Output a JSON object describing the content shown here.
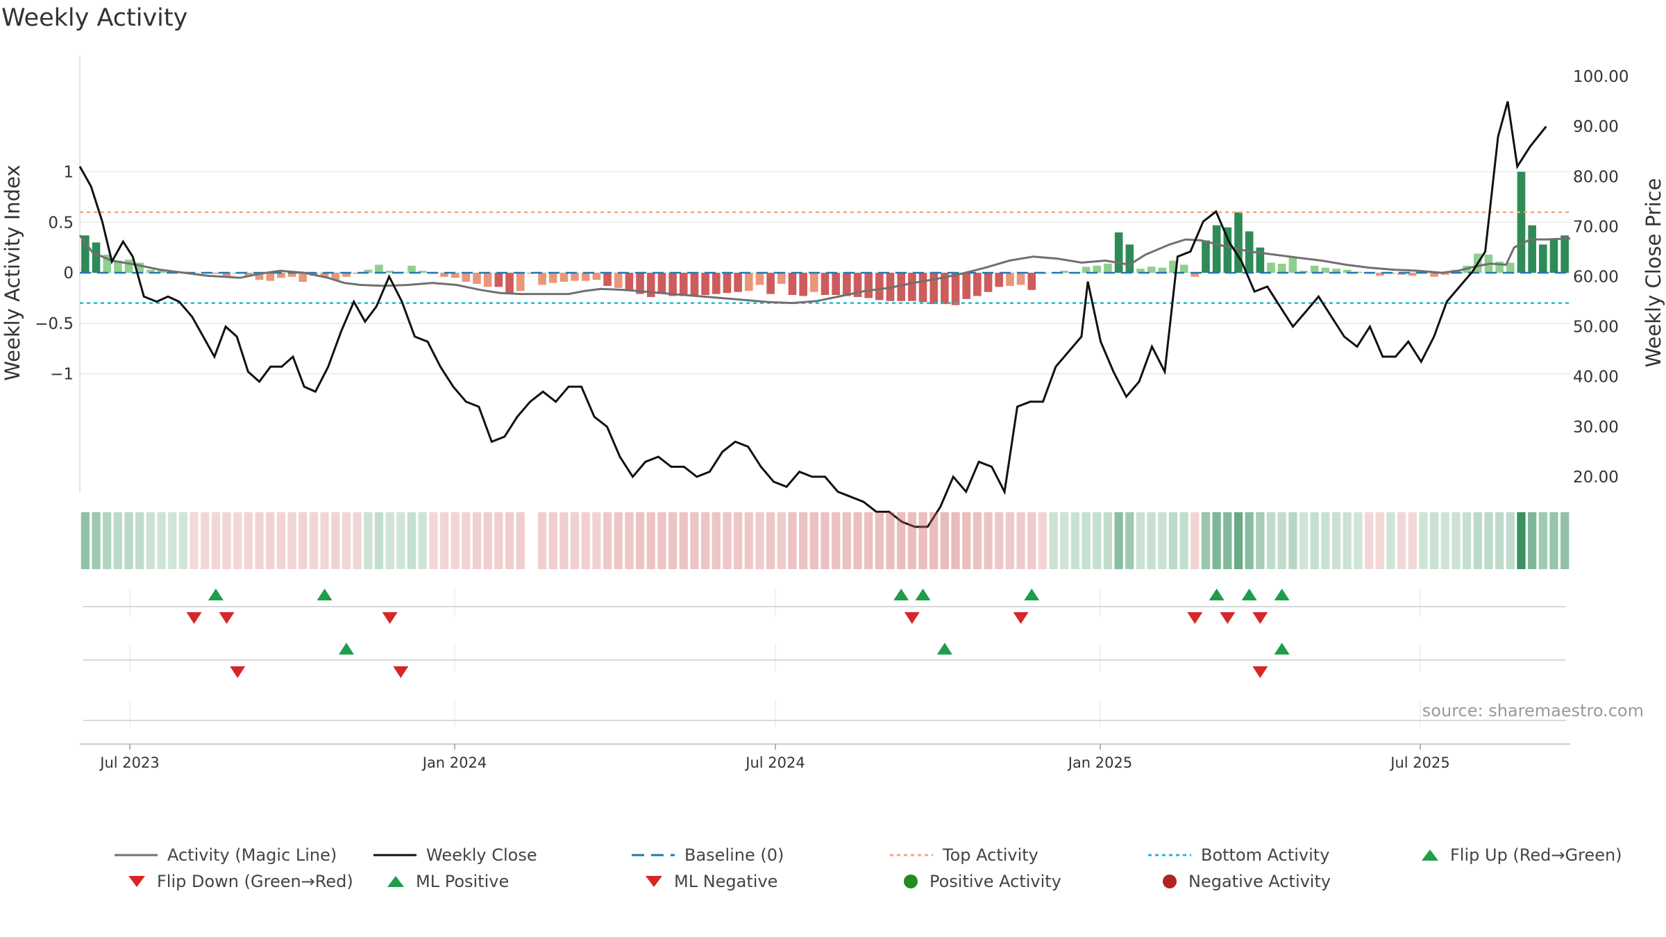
{
  "title": "Weekly Activity",
  "source": "source: sharemaestro.com",
  "colors": {
    "pos_strong": "#2e8b57",
    "pos_weak": "#8fcf8f",
    "neg_strong": "#cd5c5c",
    "neg_weak": "#e9967a",
    "magic": "#707070",
    "close": "#111111",
    "baseline": "#1f77b4",
    "top": "#f4a582",
    "bottom": "#17becf",
    "flip_up": "#1e9e48",
    "flip_down": "#d62728"
  },
  "chart_data": {
    "type": "bar",
    "title": "Weekly Activity",
    "ylabel_left": "Weekly Activity Index",
    "ylabel_right": "Weekly Close Price",
    "ylim_left": [
      -1.1,
      1.03
    ],
    "ylim_right": [
      17.17,
      103.32
    ],
    "left_ticks": [
      "1",
      "0.5",
      "0",
      "−0.5",
      "−1"
    ],
    "right_ticks": [
      "100.00",
      "90.00",
      "80.00",
      "70.00",
      "60.00",
      "50.00",
      "40.00",
      "30.00",
      "20.00"
    ],
    "date_ticks": [
      "Jul 2023",
      "Jan 2024",
      "Jul 2024",
      "Jan 2025",
      "Jul 2025"
    ],
    "baseline": 0,
    "top_activity": 0.6,
    "bottom_activity": -0.3,
    "activity": [
      0.37,
      0.3,
      0.18,
      0.12,
      0.13,
      0.1,
      0.03,
      0.02,
      0.01,
      0.01,
      0.0,
      0.0,
      -0.01,
      -0.05,
      -0.01,
      -0.03,
      -0.07,
      -0.08,
      -0.05,
      -0.04,
      -0.09,
      -0.03,
      -0.04,
      -0.07,
      -0.04,
      -0.01,
      0.03,
      0.08,
      0.02,
      0.01,
      0.07,
      0.02,
      -0.01,
      -0.04,
      -0.05,
      -0.09,
      -0.11,
      -0.14,
      -0.14,
      -0.2,
      -0.18,
      -0.01,
      -0.12,
      -0.1,
      -0.09,
      -0.08,
      -0.08,
      -0.07,
      -0.13,
      -0.15,
      -0.18,
      -0.21,
      -0.24,
      -0.21,
      -0.23,
      -0.23,
      -0.23,
      -0.22,
      -0.21,
      -0.2,
      -0.19,
      -0.18,
      -0.12,
      -0.21,
      -0.11,
      -0.22,
      -0.23,
      -0.19,
      -0.22,
      -0.22,
      -0.23,
      -0.24,
      -0.25,
      -0.27,
      -0.28,
      -0.28,
      -0.28,
      -0.29,
      -0.31,
      -0.31,
      -0.32,
      -0.26,
      -0.23,
      -0.19,
      -0.14,
      -0.13,
      -0.12,
      -0.17,
      -0.01,
      0.0,
      0.02,
      -0.01,
      0.06,
      0.07,
      0.09,
      0.4,
      0.28,
      0.04,
      0.06,
      0.05,
      0.12,
      0.08,
      -0.04,
      0.32,
      0.47,
      0.45,
      0.6,
      0.41,
      0.25,
      0.1,
      0.09,
      0.15,
      0.02,
      0.07,
      0.05,
      0.04,
      0.03,
      0.01,
      -0.01,
      -0.03,
      -0.01,
      -0.02,
      -0.03,
      0.0,
      -0.04,
      -0.02,
      0.03,
      0.07,
      0.19,
      0.18,
      0.11,
      0.1,
      1.0,
      0.47,
      0.28,
      0.33,
      0.37
    ],
    "magic_line": [
      [
        0,
        0.37
      ],
      [
        8,
        0.2
      ],
      [
        20,
        0.12
      ],
      [
        35,
        0.08
      ],
      [
        50,
        0.03
      ],
      [
        65,
        0.0
      ],
      [
        80,
        -0.03
      ],
      [
        90,
        -0.04
      ],
      [
        100,
        -0.05
      ],
      [
        112,
        -0.01
      ],
      [
        125,
        0.02
      ],
      [
        140,
        0.0
      ],
      [
        155,
        -0.05
      ],
      [
        165,
        -0.1
      ],
      [
        175,
        -0.12
      ],
      [
        190,
        -0.13
      ],
      [
        205,
        -0.12
      ],
      [
        220,
        -0.1
      ],
      [
        235,
        -0.12
      ],
      [
        250,
        -0.17
      ],
      [
        262,
        -0.2
      ],
      [
        275,
        -0.21
      ],
      [
        290,
        -0.21
      ],
      [
        305,
        -0.21
      ],
      [
        315,
        -0.18
      ],
      [
        325,
        -0.16
      ],
      [
        340,
        -0.17
      ],
      [
        355,
        -0.19
      ],
      [
        370,
        -0.21
      ],
      [
        385,
        -0.23
      ],
      [
        400,
        -0.25
      ],
      [
        415,
        -0.27
      ],
      [
        430,
        -0.29
      ],
      [
        445,
        -0.3
      ],
      [
        460,
        -0.28
      ],
      [
        475,
        -0.23
      ],
      [
        490,
        -0.18
      ],
      [
        505,
        -0.15
      ],
      [
        520,
        -0.1
      ],
      [
        535,
        -0.06
      ],
      [
        550,
        -0.01
      ],
      [
        565,
        0.05
      ],
      [
        580,
        0.12
      ],
      [
        595,
        0.16
      ],
      [
        610,
        0.14
      ],
      [
        625,
        0.1
      ],
      [
        640,
        0.12
      ],
      [
        655,
        0.08
      ],
      [
        665,
        0.18
      ],
      [
        680,
        0.28
      ],
      [
        690,
        0.33
      ],
      [
        700,
        0.32
      ],
      [
        715,
        0.26
      ],
      [
        730,
        0.21
      ],
      [
        745,
        0.18
      ],
      [
        760,
        0.15
      ],
      [
        775,
        0.12
      ],
      [
        790,
        0.08
      ],
      [
        805,
        0.05
      ],
      [
        820,
        0.03
      ],
      [
        835,
        0.02
      ],
      [
        850,
        0.0
      ],
      [
        860,
        0.02
      ],
      [
        870,
        0.06
      ],
      [
        880,
        0.09
      ],
      [
        890,
        0.08
      ],
      [
        895,
        0.25
      ],
      [
        905,
        0.33
      ],
      [
        915,
        0.33
      ],
      [
        930,
        0.34
      ]
    ],
    "weekly_close": [
      [
        0,
        82
      ],
      [
        7,
        78
      ],
      [
        14,
        71
      ],
      [
        20,
        63
      ],
      [
        27,
        67
      ],
      [
        33,
        64
      ],
      [
        40,
        56
      ],
      [
        48,
        55
      ],
      [
        55,
        56
      ],
      [
        62,
        55
      ],
      [
        70,
        52
      ],
      [
        77,
        48
      ],
      [
        84,
        44
      ],
      [
        91,
        50
      ],
      [
        98,
        48
      ],
      [
        105,
        41
      ],
      [
        112,
        39
      ],
      [
        119,
        42
      ],
      [
        126,
        42
      ],
      [
        133,
        44
      ],
      [
        140,
        38
      ],
      [
        147,
        37
      ],
      [
        155,
        42
      ],
      [
        163,
        49
      ],
      [
        171,
        55
      ],
      [
        178,
        51
      ],
      [
        185,
        54
      ],
      [
        193,
        60
      ],
      [
        201,
        55
      ],
      [
        209,
        48
      ],
      [
        217,
        47
      ],
      [
        225,
        42
      ],
      [
        233,
        38
      ],
      [
        241,
        35
      ],
      [
        249,
        34
      ],
      [
        257,
        27
      ],
      [
        265,
        28
      ],
      [
        273,
        32
      ],
      [
        281,
        35
      ],
      [
        289,
        37
      ],
      [
        297,
        35
      ],
      [
        305,
        38
      ],
      [
        313,
        38
      ],
      [
        321,
        32
      ],
      [
        329,
        30
      ],
      [
        337,
        24
      ],
      [
        345,
        20
      ],
      [
        353,
        23
      ],
      [
        361,
        24
      ],
      [
        369,
        22
      ],
      [
        377,
        22
      ],
      [
        385,
        20
      ],
      [
        393,
        21
      ],
      [
        401,
        25
      ],
      [
        409,
        27
      ],
      [
        417,
        26
      ],
      [
        425,
        22
      ],
      [
        433,
        19
      ],
      [
        441,
        18
      ],
      [
        449,
        21
      ],
      [
        457,
        20
      ],
      [
        465,
        20
      ],
      [
        473,
        17
      ],
      [
        481,
        16
      ],
      [
        489,
        15
      ],
      [
        497,
        13
      ],
      [
        505,
        13
      ],
      [
        513,
        11
      ],
      [
        521,
        10
      ],
      [
        529,
        10
      ],
      [
        537,
        14
      ],
      [
        545,
        20
      ],
      [
        553,
        17
      ],
      [
        561,
        23
      ],
      [
        569,
        22
      ],
      [
        577,
        17
      ],
      [
        585,
        34
      ],
      [
        593,
        35
      ],
      [
        601,
        35
      ],
      [
        609,
        42
      ],
      [
        617,
        45
      ],
      [
        625,
        48
      ],
      [
        629,
        59
      ],
      [
        637,
        47
      ],
      [
        645,
        41
      ],
      [
        653,
        36
      ],
      [
        661,
        39
      ],
      [
        669,
        46
      ],
      [
        677,
        41
      ],
      [
        685,
        64
      ],
      [
        693,
        65
      ],
      [
        701,
        71
      ],
      [
        709,
        73
      ],
      [
        717,
        67
      ],
      [
        725,
        63
      ],
      [
        733,
        57
      ],
      [
        741,
        58
      ],
      [
        749,
        54
      ],
      [
        757,
        50
      ],
      [
        765,
        53
      ],
      [
        773,
        56
      ],
      [
        781,
        52
      ],
      [
        789,
        48
      ],
      [
        797,
        46
      ],
      [
        805,
        50
      ],
      [
        813,
        44
      ],
      [
        821,
        44
      ],
      [
        829,
        47
      ],
      [
        837,
        43
      ],
      [
        845,
        48
      ],
      [
        853,
        55
      ],
      [
        861,
        58
      ],
      [
        869,
        61
      ],
      [
        877,
        65
      ],
      [
        885,
        88
      ],
      [
        891,
        95
      ],
      [
        897,
        82
      ],
      [
        905,
        86
      ],
      [
        915,
        90
      ]
    ]
  },
  "heat_strip": [
    0.37,
    0.3,
    0.18,
    0.12,
    0.13,
    0.1,
    0.03,
    0.02,
    0.01,
    0.01,
    -0.02,
    -0.03,
    -0.03,
    -0.04,
    -0.03,
    -0.05,
    -0.06,
    -0.07,
    -0.05,
    -0.04,
    -0.06,
    -0.04,
    -0.04,
    -0.06,
    -0.04,
    -0.04,
    0.03,
    0.08,
    0.02,
    0.01,
    0.07,
    0.02,
    -0.03,
    -0.04,
    -0.05,
    -0.06,
    -0.08,
    -0.09,
    -0.09,
    -0.1,
    -0.1,
    null,
    -0.09,
    -0.09,
    -0.09,
    -0.08,
    -0.08,
    -0.07,
    -0.13,
    -0.15,
    -0.15,
    -0.17,
    -0.17,
    -0.17,
    -0.17,
    -0.17,
    -0.17,
    -0.16,
    -0.16,
    -0.15,
    -0.15,
    -0.14,
    -0.12,
    -0.15,
    -0.11,
    -0.18,
    -0.18,
    -0.19,
    -0.19,
    -0.19,
    -0.19,
    -0.2,
    -0.2,
    -0.2,
    -0.21,
    -0.21,
    -0.21,
    -0.22,
    -0.22,
    -0.23,
    -0.23,
    -0.21,
    -0.19,
    -0.17,
    -0.14,
    -0.13,
    -0.12,
    -0.12,
    -0.05,
    0.03,
    0.02,
    0.05,
    0.06,
    0.07,
    0.09,
    0.4,
    0.28,
    0.04,
    0.06,
    0.05,
    0.12,
    0.08,
    -0.05,
    0.32,
    0.47,
    0.45,
    0.6,
    0.41,
    0.25,
    0.1,
    0.09,
    0.15,
    0.02,
    0.07,
    0.05,
    0.04,
    0.03,
    0.01,
    -0.03,
    -0.03,
    0.02,
    -0.03,
    -0.03,
    0.02,
    0.05,
    0.02,
    0.03,
    0.07,
    0.12,
    0.12,
    0.11,
    0.1,
    1.0,
    0.47,
    0.28,
    0.33,
    0.37
  ],
  "flip_up": [
    [
      12,
      0
    ],
    [
      22,
      0
    ],
    [
      75,
      0
    ],
    [
      77,
      0
    ],
    [
      87,
      0
    ],
    [
      104,
      0
    ],
    [
      107,
      0
    ],
    [
      110,
      0
    ]
  ],
  "flip_down": [
    [
      10,
      0
    ],
    [
      13,
      0
    ],
    [
      28,
      0
    ],
    [
      76,
      0
    ],
    [
      86,
      0
    ],
    [
      102,
      0
    ],
    [
      105,
      0
    ],
    [
      108,
      0
    ]
  ],
  "ml_positive": [
    [
      24,
      0
    ],
    [
      79,
      0
    ],
    [
      110,
      0
    ]
  ],
  "ml_negative": [
    [
      14,
      0
    ],
    [
      29,
      0
    ],
    [
      108,
      0
    ]
  ],
  "legend": [
    {
      "label": "Activity (Magic Line)",
      "symbol": "line-gray"
    },
    {
      "label": "Weekly Close",
      "symbol": "line-black"
    },
    {
      "label": "Baseline (0)",
      "symbol": "dash-blue"
    },
    {
      "label": "Top Activity",
      "symbol": "dot-orange"
    },
    {
      "label": "Bottom Activity",
      "symbol": "dot-cyan"
    },
    {
      "label": "Flip Up (Red→Green)",
      "symbol": "tri-up-green"
    },
    {
      "label": "Flip Down (Green→Red)",
      "symbol": "tri-down-red"
    },
    {
      "label": "ML Positive",
      "symbol": "tri-up-green"
    },
    {
      "label": "ML Negative",
      "symbol": "tri-down-red"
    },
    {
      "label": "Positive Activity",
      "symbol": "circle-green"
    },
    {
      "label": "Negative Activity",
      "symbol": "circle-red"
    }
  ]
}
